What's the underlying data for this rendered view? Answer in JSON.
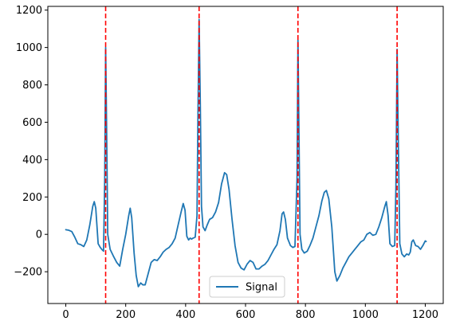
{
  "chart_data": {
    "type": "line",
    "title": "",
    "xlabel": "",
    "ylabel": "",
    "xlim": [
      -60,
      1260
    ],
    "ylim": [
      -370,
      1220
    ],
    "xticks": [
      0,
      200,
      400,
      600,
      800,
      1000,
      1200
    ],
    "yticks": [
      -200,
      0,
      200,
      400,
      600,
      800,
      1000,
      1200
    ],
    "grid": false,
    "legend": {
      "position": "lower center",
      "entries": [
        "Signal"
      ]
    },
    "series": [
      {
        "name": "Signal",
        "color": "#1f77b4",
        "points": [
          [
            0,
            25
          ],
          [
            10,
            22
          ],
          [
            20,
            15
          ],
          [
            30,
            -15
          ],
          [
            40,
            -50
          ],
          [
            50,
            -55
          ],
          [
            60,
            -65
          ],
          [
            70,
            -30
          ],
          [
            80,
            50
          ],
          [
            90,
            150
          ],
          [
            95,
            175
          ],
          [
            100,
            140
          ],
          [
            108,
            -50
          ],
          [
            115,
            -70
          ],
          [
            120,
            -80
          ],
          [
            126,
            -90
          ],
          [
            130,
            300
          ],
          [
            133,
            1000
          ],
          [
            136,
            600
          ],
          [
            140,
            0
          ],
          [
            148,
            -80
          ],
          [
            160,
            -120
          ],
          [
            170,
            -150
          ],
          [
            180,
            -170
          ],
          [
            190,
            -80
          ],
          [
            200,
            0
          ],
          [
            210,
            100
          ],
          [
            215,
            140
          ],
          [
            220,
            90
          ],
          [
            228,
            -100
          ],
          [
            235,
            -220
          ],
          [
            242,
            -280
          ],
          [
            250,
            -260
          ],
          [
            257,
            -270
          ],
          [
            265,
            -270
          ],
          [
            275,
            -210
          ],
          [
            285,
            -150
          ],
          [
            295,
            -135
          ],
          [
            305,
            -140
          ],
          [
            315,
            -120
          ],
          [
            325,
            -95
          ],
          [
            335,
            -80
          ],
          [
            345,
            -70
          ],
          [
            355,
            -50
          ],
          [
            365,
            -20
          ],
          [
            375,
            50
          ],
          [
            385,
            120
          ],
          [
            392,
            165
          ],
          [
            398,
            130
          ],
          [
            404,
            -10
          ],
          [
            410,
            -30
          ],
          [
            415,
            -20
          ],
          [
            420,
            -25
          ],
          [
            425,
            -20
          ],
          [
            432,
            -15
          ],
          [
            438,
            100
          ],
          [
            441,
            600
          ],
          [
            445,
            1150
          ],
          [
            449,
            700
          ],
          [
            453,
            150
          ],
          [
            458,
            40
          ],
          [
            465,
            20
          ],
          [
            472,
            50
          ],
          [
            480,
            80
          ],
          [
            490,
            90
          ],
          [
            500,
            120
          ],
          [
            510,
            170
          ],
          [
            520,
            270
          ],
          [
            530,
            330
          ],
          [
            537,
            320
          ],
          [
            545,
            240
          ],
          [
            555,
            80
          ],
          [
            565,
            -60
          ],
          [
            575,
            -150
          ],
          [
            585,
            -180
          ],
          [
            595,
            -190
          ],
          [
            605,
            -160
          ],
          [
            615,
            -140
          ],
          [
            625,
            -150
          ],
          [
            635,
            -185
          ],
          [
            645,
            -185
          ],
          [
            655,
            -170
          ],
          [
            665,
            -160
          ],
          [
            675,
            -140
          ],
          [
            685,
            -110
          ],
          [
            695,
            -80
          ],
          [
            705,
            -55
          ],
          [
            715,
            20
          ],
          [
            722,
            110
          ],
          [
            727,
            120
          ],
          [
            733,
            80
          ],
          [
            740,
            -20
          ],
          [
            750,
            -60
          ],
          [
            758,
            -70
          ],
          [
            765,
            -65
          ],
          [
            772,
            300
          ],
          [
            775,
            1040
          ],
          [
            778,
            600
          ],
          [
            782,
            0
          ],
          [
            788,
            -80
          ],
          [
            796,
            -100
          ],
          [
            806,
            -90
          ],
          [
            815,
            -60
          ],
          [
            825,
            -20
          ],
          [
            835,
            40
          ],
          [
            845,
            100
          ],
          [
            855,
            180
          ],
          [
            863,
            225
          ],
          [
            870,
            235
          ],
          [
            878,
            190
          ],
          [
            888,
            40
          ],
          [
            898,
            -200
          ],
          [
            905,
            -250
          ],
          [
            915,
            -220
          ],
          [
            925,
            -180
          ],
          [
            935,
            -150
          ],
          [
            945,
            -120
          ],
          [
            955,
            -100
          ],
          [
            965,
            -80
          ],
          [
            975,
            -60
          ],
          [
            985,
            -40
          ],
          [
            995,
            -30
          ],
          [
            1005,
            0
          ],
          [
            1015,
            10
          ],
          [
            1025,
            -5
          ],
          [
            1035,
            0
          ],
          [
            1045,
            40
          ],
          [
            1055,
            90
          ],
          [
            1065,
            150
          ],
          [
            1070,
            175
          ],
          [
            1076,
            100
          ],
          [
            1082,
            -50
          ],
          [
            1090,
            -65
          ],
          [
            1098,
            -60
          ],
          [
            1102,
            250
          ],
          [
            1106,
            990
          ],
          [
            1110,
            500
          ],
          [
            1115,
            -50
          ],
          [
            1122,
            -105
          ],
          [
            1130,
            -120
          ],
          [
            1138,
            -105
          ],
          [
            1145,
            -110
          ],
          [
            1150,
            -95
          ],
          [
            1155,
            -40
          ],
          [
            1160,
            -30
          ],
          [
            1168,
            -60
          ],
          [
            1176,
            -65
          ],
          [
            1184,
            -80
          ],
          [
            1192,
            -60
          ],
          [
            1200,
            -35
          ],
          [
            1203,
            -38
          ]
        ]
      }
    ],
    "vlines": {
      "color": "#ff0000",
      "style": "dashed",
      "x": [
        133,
        445,
        775,
        1106
      ]
    }
  }
}
